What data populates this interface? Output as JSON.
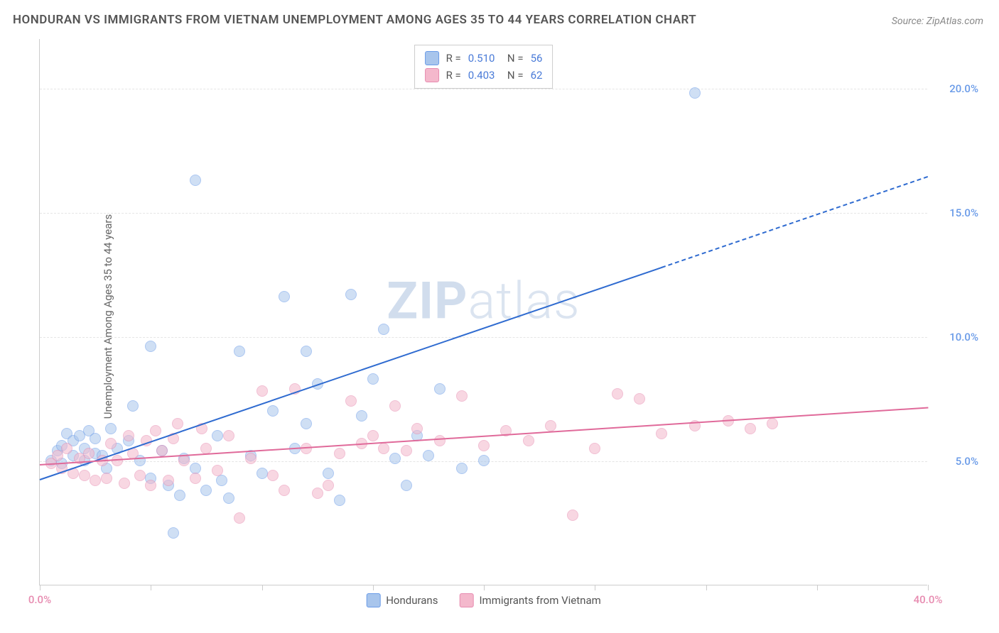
{
  "title": "HONDURAN VS IMMIGRANTS FROM VIETNAM UNEMPLOYMENT AMONG AGES 35 TO 44 YEARS CORRELATION CHART",
  "source": "Source: ZipAtlas.com",
  "y_axis_label": "Unemployment Among Ages 35 to 44 years",
  "watermark": {
    "zip": "ZIP",
    "atlas": "atlas"
  },
  "chart": {
    "type": "scatter",
    "background_color": "#ffffff",
    "grid_color": "#e5e5e5",
    "axis_color": "#cccccc",
    "xlim": [
      0,
      40
    ],
    "ylim": [
      0,
      22
    ],
    "x_ticks": [
      0,
      5,
      10,
      15,
      20,
      25,
      30,
      35,
      40
    ],
    "x_tick_labels": {
      "0": "0.0%",
      "40": "40.0%"
    },
    "x_tick_label_color": "#e78bb0",
    "y_gridlines": [
      5,
      10,
      15,
      20
    ],
    "y_tick_labels": {
      "5": "5.0%",
      "10": "10.0%",
      "15": "15.0%",
      "20": "20.0%"
    },
    "y_tick_label_color": "#6a9be8",
    "marker_radius": 8,
    "marker_border_width": 1.5,
    "series": [
      {
        "name": "Hondurans",
        "fill_color": "#a8c5ec",
        "fill_opacity": 0.55,
        "border_color": "#6a9be8",
        "trend_color": "#2f6bd0",
        "trend_dash_after_x": 28,
        "stats": {
          "R": "0.510",
          "N": "56"
        },
        "trend": {
          "x1": 0,
          "y1": 4.3,
          "x2": 40,
          "y2": 16.5
        },
        "points": [
          [
            0.5,
            5.0
          ],
          [
            0.8,
            5.4
          ],
          [
            1.0,
            5.6
          ],
          [
            1.0,
            4.9
          ],
          [
            1.2,
            6.1
          ],
          [
            1.5,
            5.8
          ],
          [
            1.5,
            5.2
          ],
          [
            1.8,
            6.0
          ],
          [
            2.0,
            5.5
          ],
          [
            2.0,
            5.0
          ],
          [
            2.2,
            6.2
          ],
          [
            2.5,
            5.9
          ],
          [
            2.5,
            5.3
          ],
          [
            2.8,
            5.2
          ],
          [
            3.0,
            4.7
          ],
          [
            3.2,
            6.3
          ],
          [
            3.5,
            5.5
          ],
          [
            4.0,
            5.8
          ],
          [
            4.2,
            7.2
          ],
          [
            4.5,
            5.0
          ],
          [
            5.0,
            9.6
          ],
          [
            5.0,
            4.3
          ],
          [
            5.5,
            5.4
          ],
          [
            5.8,
            4.0
          ],
          [
            6.0,
            2.1
          ],
          [
            6.3,
            3.6
          ],
          [
            6.5,
            5.1
          ],
          [
            7.0,
            16.3
          ],
          [
            7.0,
            4.7
          ],
          [
            7.5,
            3.8
          ],
          [
            8.0,
            6.0
          ],
          [
            8.2,
            4.2
          ],
          [
            8.5,
            3.5
          ],
          [
            9.0,
            9.4
          ],
          [
            9.5,
            5.2
          ],
          [
            10.0,
            4.5
          ],
          [
            10.5,
            7.0
          ],
          [
            11.0,
            11.6
          ],
          [
            11.5,
            5.5
          ],
          [
            12.0,
            6.5
          ],
          [
            12.0,
            9.4
          ],
          [
            12.5,
            8.1
          ],
          [
            13.0,
            4.5
          ],
          [
            13.5,
            3.4
          ],
          [
            14.0,
            11.7
          ],
          [
            14.5,
            6.8
          ],
          [
            15.0,
            8.3
          ],
          [
            15.5,
            10.3
          ],
          [
            16.0,
            5.1
          ],
          [
            16.5,
            4.0
          ],
          [
            17.0,
            6.0
          ],
          [
            18.0,
            7.9
          ],
          [
            19.0,
            4.7
          ],
          [
            29.5,
            19.8
          ],
          [
            20.0,
            5.0
          ],
          [
            17.5,
            5.2
          ]
        ]
      },
      {
        "name": "Immigrants from Vietnam",
        "fill_color": "#f4b8cc",
        "fill_opacity": 0.55,
        "border_color": "#e78bb0",
        "trend_color": "#e06a9a",
        "trend_dash_after_x": 40,
        "stats": {
          "R": "0.403",
          "N": "62"
        },
        "trend": {
          "x1": 0,
          "y1": 4.9,
          "x2": 40,
          "y2": 7.2
        },
        "points": [
          [
            0.5,
            4.9
          ],
          [
            0.8,
            5.2
          ],
          [
            1.0,
            4.7
          ],
          [
            1.2,
            5.5
          ],
          [
            1.5,
            4.5
          ],
          [
            1.8,
            5.1
          ],
          [
            2.0,
            4.4
          ],
          [
            2.2,
            5.3
          ],
          [
            2.5,
            4.2
          ],
          [
            2.8,
            5.0
          ],
          [
            3.0,
            4.3
          ],
          [
            3.2,
            5.7
          ],
          [
            3.5,
            5.0
          ],
          [
            3.8,
            4.1
          ],
          [
            4.0,
            6.0
          ],
          [
            4.2,
            5.3
          ],
          [
            4.5,
            4.4
          ],
          [
            4.8,
            5.8
          ],
          [
            5.0,
            4.0
          ],
          [
            5.2,
            6.2
          ],
          [
            5.5,
            5.4
          ],
          [
            5.8,
            4.2
          ],
          [
            6.0,
            5.9
          ],
          [
            6.2,
            6.5
          ],
          [
            6.5,
            5.0
          ],
          [
            7.0,
            4.3
          ],
          [
            7.3,
            6.3
          ],
          [
            7.5,
            5.5
          ],
          [
            8.0,
            4.6
          ],
          [
            8.5,
            6.0
          ],
          [
            9.0,
            2.7
          ],
          [
            9.5,
            5.1
          ],
          [
            10.0,
            7.8
          ],
          [
            10.5,
            4.4
          ],
          [
            11.0,
            3.8
          ],
          [
            11.5,
            7.9
          ],
          [
            12.0,
            5.5
          ],
          [
            12.5,
            3.7
          ],
          [
            13.0,
            4.0
          ],
          [
            13.5,
            5.3
          ],
          [
            14.0,
            7.4
          ],
          [
            14.5,
            5.7
          ],
          [
            15.0,
            6.0
          ],
          [
            15.5,
            5.5
          ],
          [
            16.0,
            7.2
          ],
          [
            16.5,
            5.4
          ],
          [
            17.0,
            6.3
          ],
          [
            18.0,
            5.8
          ],
          [
            19.0,
            7.6
          ],
          [
            20.0,
            5.6
          ],
          [
            21.0,
            6.2
          ],
          [
            22.0,
            5.8
          ],
          [
            23.0,
            6.4
          ],
          [
            24.0,
            2.8
          ],
          [
            25.0,
            5.5
          ],
          [
            26.0,
            7.7
          ],
          [
            27.0,
            7.5
          ],
          [
            28.0,
            6.1
          ],
          [
            29.5,
            6.4
          ],
          [
            31.0,
            6.6
          ],
          [
            32.0,
            6.3
          ],
          [
            33.0,
            6.5
          ]
        ]
      }
    ],
    "legend": [
      {
        "label": "Hondurans",
        "fill": "#a8c5ec",
        "border": "#6a9be8"
      },
      {
        "label": "Immigrants from Vietnam",
        "fill": "#f4b8cc",
        "border": "#e78bb0"
      }
    ]
  }
}
